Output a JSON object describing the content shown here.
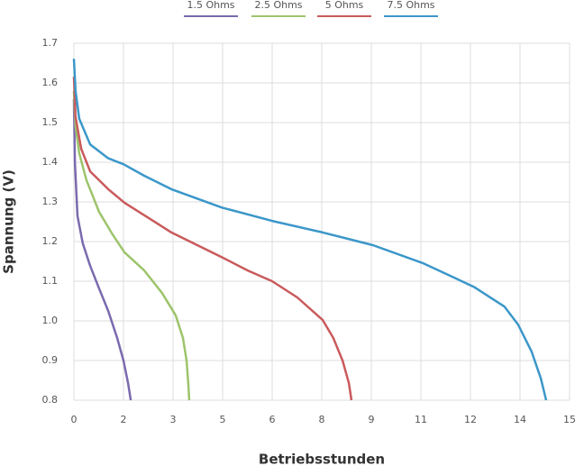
{
  "chart_data": {
    "type": "line",
    "x_label": "Betriebsstunden",
    "y_label": "Spannung (V)",
    "xlim": [
      0,
      15
    ],
    "ylim": [
      0.8,
      1.7
    ],
    "xticks": [
      0,
      {
        "value": 1.5,
        "label": "2"
      },
      3,
      {
        "value": 4.5,
        "label": "5"
      },
      6,
      {
        "value": 7.5,
        "label": "8"
      },
      9,
      {
        "value": 10.5,
        "label": "11"
      },
      12,
      {
        "value": 13.5,
        "label": "14"
      },
      15
    ],
    "yticks": [
      {
        "value": 0.8,
        "label": "0.8"
      },
      0.9,
      {
        "value": 1.0,
        "label": "1.0"
      },
      1.1,
      1.2,
      1.3,
      1.4,
      1.5,
      1.6,
      1.7
    ],
    "grid": true,
    "legend": "top",
    "series": [
      {
        "name": "1.5 Ohms",
        "color": "#7a6aae",
        "x": [
          0,
          0.03,
          0.11,
          0.27,
          0.49,
          0.76,
          1.04,
          1.31,
          1.5,
          1.64,
          1.72
        ],
        "values": [
          1.559,
          1.4,
          1.264,
          1.195,
          1.139,
          1.082,
          1.025,
          0.957,
          0.9,
          0.843,
          0.8
        ]
      },
      {
        "name": "2.5 Ohms",
        "color": "#9dc46b",
        "x": [
          0,
          0.05,
          0.16,
          0.38,
          0.76,
          1.17,
          1.53,
          2.13,
          2.67,
          3.08,
          3.3,
          3.41,
          3.46,
          3.49
        ],
        "values": [
          1.58,
          1.491,
          1.423,
          1.355,
          1.275,
          1.218,
          1.173,
          1.127,
          1.07,
          1.014,
          0.957,
          0.9,
          0.843,
          0.8
        ]
      },
      {
        "name": "5 Ohms",
        "color": "#c95a5c",
        "x": [
          0,
          0.05,
          0.22,
          0.49,
          1.04,
          1.53,
          2.4,
          2.95,
          4.47,
          5.26,
          6,
          6.76,
          7.53,
          7.85,
          8.13,
          8.32,
          8.4
        ],
        "values": [
          1.616,
          1.514,
          1.434,
          1.377,
          1.332,
          1.298,
          1.252,
          1.223,
          1.161,
          1.127,
          1.1,
          1.059,
          1.002,
          0.957,
          0.9,
          0.843,
          0.8
        ]
      },
      {
        "name": "7.5 Ohms",
        "color": "#3b97c9",
        "x": [
          0,
          0.05,
          0.16,
          0.49,
          1.04,
          1.5,
          2.13,
          2.95,
          4.47,
          6,
          7.53,
          9.05,
          10.58,
          12.1,
          13.03,
          13.44,
          13.85,
          14.13,
          14.29
        ],
        "values": [
          1.661,
          1.58,
          1.51,
          1.445,
          1.41,
          1.395,
          1.366,
          1.332,
          1.286,
          1.252,
          1.223,
          1.191,
          1.145,
          1.086,
          1.036,
          0.991,
          0.923,
          0.855,
          0.8
        ]
      }
    ]
  }
}
